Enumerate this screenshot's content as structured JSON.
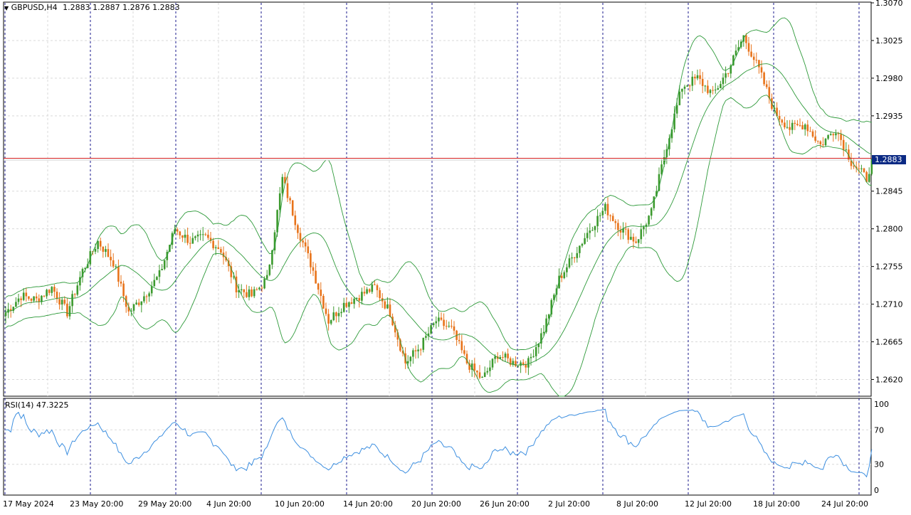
{
  "header": {
    "symbol_timeframe": "GBPUSD,H4",
    "ohlc": "1.2883 1.2887 1.2876 1.2883"
  },
  "rsi_header": {
    "label": "RSI(14)",
    "value": "47.3225"
  },
  "colors": {
    "bull": "#3c9a2e",
    "bear": "#e8731a",
    "bands": "#2e9a3a",
    "rsi": "#3d8fe0",
    "price_line": "#d62020",
    "price_tag_bg": "#0b2a84",
    "grid": "#d9d9d9",
    "separator": "#1a1a8c"
  },
  "current_price_label": "1.2883",
  "chart_data": [
    {
      "type": "candlestick",
      "symbol": "GBPUSD",
      "timeframe": "H4",
      "y_range": [
        1.26,
        1.307
      ],
      "y_ticks": [
        "1.3070",
        "1.3025",
        "1.2980",
        "1.2935",
        "1.2845",
        "1.2800",
        "1.2755",
        "1.2710",
        "1.2665",
        "1.2620"
      ],
      "x_labels": [
        "17 May 2024",
        "23 May 20:00",
        "29 May 20:00",
        "4 Jun 20:00",
        "10 Jun 20:00",
        "14 Jun 20:00",
        "20 Jun 20:00",
        "26 Jun 20:00",
        "2 Jul 20:00",
        "8 Jul 20:00",
        "12 Jul 20:00",
        "18 Jul 20:00",
        "24 Jul 20:00"
      ],
      "current_price": 1.2883,
      "anchors": [
        [
          0,
          1.27
        ],
        [
          6,
          1.272
        ],
        [
          12,
          1.2715
        ],
        [
          18,
          1.273
        ],
        [
          24,
          1.27
        ],
        [
          30,
          1.275
        ],
        [
          36,
          1.2785
        ],
        [
          42,
          1.276
        ],
        [
          48,
          1.27
        ],
        [
          54,
          1.272
        ],
        [
          60,
          1.2745
        ],
        [
          66,
          1.28
        ],
        [
          72,
          1.2785
        ],
        [
          78,
          1.279
        ],
        [
          84,
          1.2775
        ],
        [
          90,
          1.273
        ],
        [
          96,
          1.272
        ],
        [
          102,
          1.274
        ],
        [
          108,
          1.286
        ],
        [
          114,
          1.28
        ],
        [
          120,
          1.275
        ],
        [
          126,
          1.269
        ],
        [
          132,
          1.271
        ],
        [
          138,
          1.272
        ],
        [
          144,
          1.273
        ],
        [
          150,
          1.27
        ],
        [
          156,
          1.264
        ],
        [
          162,
          1.266
        ],
        [
          168,
          1.269
        ],
        [
          174,
          1.268
        ],
        [
          180,
          1.264
        ],
        [
          186,
          1.262
        ],
        [
          192,
          1.265
        ],
        [
          198,
          1.264
        ],
        [
          204,
          1.264
        ],
        [
          210,
          1.268
        ],
        [
          216,
          1.274
        ],
        [
          222,
          1.277
        ],
        [
          228,
          1.28
        ],
        [
          234,
          1.2825
        ],
        [
          240,
          1.28
        ],
        [
          246,
          1.2785
        ],
        [
          252,
          1.282
        ],
        [
          258,
          1.29
        ],
        [
          264,
          1.297
        ],
        [
          270,
          1.298
        ],
        [
          276,
          1.296
        ],
        [
          282,
          1.299
        ],
        [
          288,
          1.303
        ],
        [
          294,
          1.299
        ],
        [
          300,
          1.294
        ],
        [
          306,
          1.292
        ],
        [
          312,
          1.2925
        ],
        [
          318,
          1.29
        ],
        [
          324,
          1.292
        ],
        [
          330,
          1.288
        ],
        [
          336,
          1.286
        ],
        [
          338,
          1.2883
        ]
      ]
    },
    {
      "type": "line",
      "name": "RSI(14)",
      "y_range": [
        0,
        100
      ],
      "y_ticks": [
        100,
        70,
        30,
        0
      ],
      "last_value": 47.3225
    }
  ]
}
